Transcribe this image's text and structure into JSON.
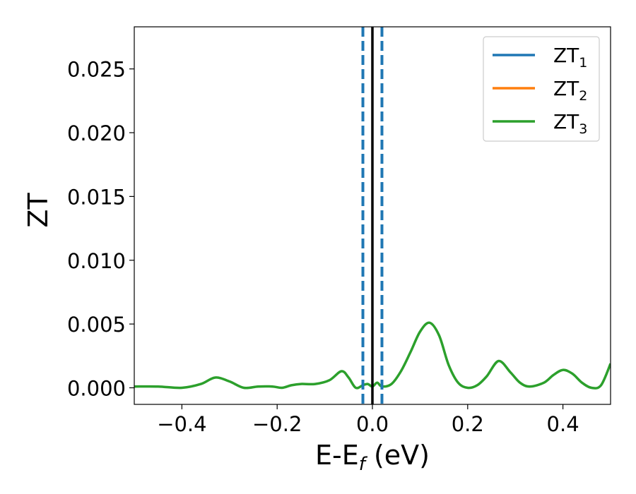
{
  "chart_data": {
    "type": "line",
    "xlabel": {
      "main": "E-E",
      "sub": "f",
      "unit": " (eV)"
    },
    "ylabel": "ZT",
    "xlim": [
      -0.5,
      0.5
    ],
    "ylim": [
      -0.0013,
      0.0283
    ],
    "x_ticks": [
      -0.4,
      -0.2,
      0.0,
      0.2,
      0.4
    ],
    "x_tick_labels": [
      "−0.4",
      "−0.2",
      "0.0",
      "0.2",
      "0.4"
    ],
    "y_ticks": [
      0.0,
      0.005,
      0.01,
      0.015,
      0.02,
      0.025
    ],
    "y_tick_labels": [
      "0.000",
      "0.005",
      "0.010",
      "0.015",
      "0.020",
      "0.025"
    ],
    "grid": false,
    "legend_position": "top-right",
    "series": [
      {
        "name": "ZT",
        "sub": "1",
        "color": "#1f77b4"
      },
      {
        "name": "ZT",
        "sub": "2",
        "color": "#ff7f0e"
      },
      {
        "name": "ZT",
        "sub": "3",
        "color": "#2ca02c",
        "x": [
          -0.5,
          -0.45,
          -0.4,
          -0.36,
          -0.33,
          -0.3,
          -0.27,
          -0.24,
          -0.21,
          -0.19,
          -0.17,
          -0.15,
          -0.12,
          -0.09,
          -0.065,
          -0.05,
          -0.035,
          -0.02,
          -0.01,
          0.0,
          0.01,
          0.02,
          0.04,
          0.06,
          0.08,
          0.1,
          0.12,
          0.14,
          0.16,
          0.18,
          0.2,
          0.22,
          0.24,
          0.265,
          0.29,
          0.31,
          0.33,
          0.36,
          0.38,
          0.4,
          0.42,
          0.44,
          0.46,
          0.48,
          0.5
        ],
        "y": [
          0.0001,
          0.0001,
          0.0,
          0.0003,
          0.0008,
          0.0005,
          0.0,
          0.0001,
          0.0001,
          0.0,
          0.0002,
          0.0003,
          0.0003,
          0.0006,
          0.0013,
          0.0008,
          0.0,
          0.0002,
          0.0003,
          0.0001,
          0.0004,
          0.0001,
          0.0003,
          0.0013,
          0.0028,
          0.0044,
          0.0051,
          0.0041,
          0.0018,
          0.0004,
          0.0,
          0.0002,
          0.0009,
          0.0021,
          0.0012,
          0.0004,
          0.0001,
          0.0004,
          0.001,
          0.0014,
          0.0011,
          0.0004,
          0.0,
          0.0002,
          0.0019
        ]
      }
    ],
    "vertical_lines": [
      {
        "x": -0.02,
        "style": "dashed",
        "color": "#1f77b4"
      },
      {
        "x": 0.0,
        "style": "solid",
        "color": "#000000"
      },
      {
        "x": 0.02,
        "style": "dashed",
        "color": "#1f77b4"
      }
    ]
  }
}
